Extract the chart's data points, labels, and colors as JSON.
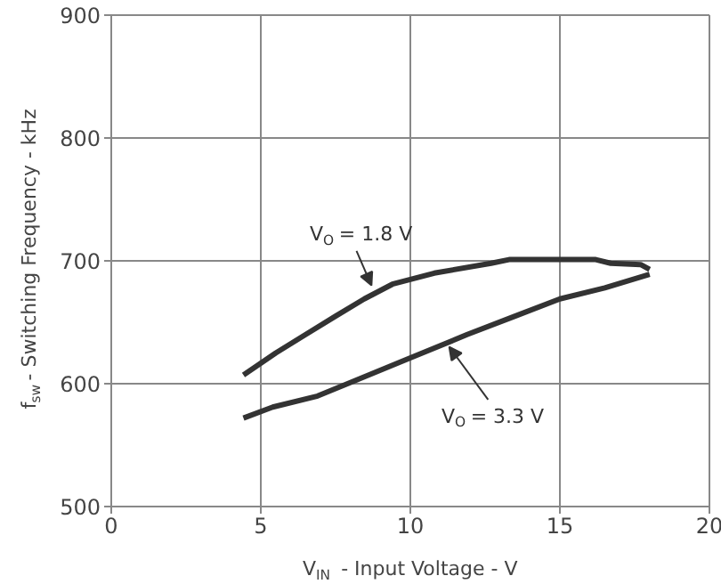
{
  "chart_data": {
    "type": "line",
    "xlabel": "V$_{IN}$ - Input Voltage - V",
    "ylabel": "f$_{sw}$ - Switching Frequency - kHz",
    "xlim": [
      0,
      20
    ],
    "xticks": [
      0,
      5,
      10,
      15,
      20
    ],
    "ylim": [
      500,
      900
    ],
    "yticks": [
      500,
      600,
      700,
      800,
      900
    ],
    "grid": true,
    "series": [
      {
        "color": "#333333",
        "x": [
          4.42,
          5.5,
          6.5,
          7.5,
          8.46,
          9.4,
          10.8,
          12.7,
          13.3,
          16.2,
          16.7,
          17.7,
          18.0
        ],
        "values": [
          607,
          625,
          640,
          655,
          669,
          681,
          690,
          698,
          701,
          701,
          698,
          697,
          693
        ]
      },
      {
        "color": "#333333",
        "x": [
          4.42,
          5.4,
          6.9,
          8.1,
          10.0,
          11.9,
          13.5,
          15.0,
          16.5,
          18.0
        ],
        "values": [
          572,
          581,
          590,
          602,
          621,
          640,
          655,
          669,
          678,
          689
        ]
      }
    ],
    "annotations": [
      {
        "text": "V$_{O}$ = 1.8 V",
        "x": 8.7,
        "y": 680
      },
      {
        "text": "V$_{O}$ = 3.3 V",
        "x": 11.3,
        "y": 630
      }
    ]
  }
}
